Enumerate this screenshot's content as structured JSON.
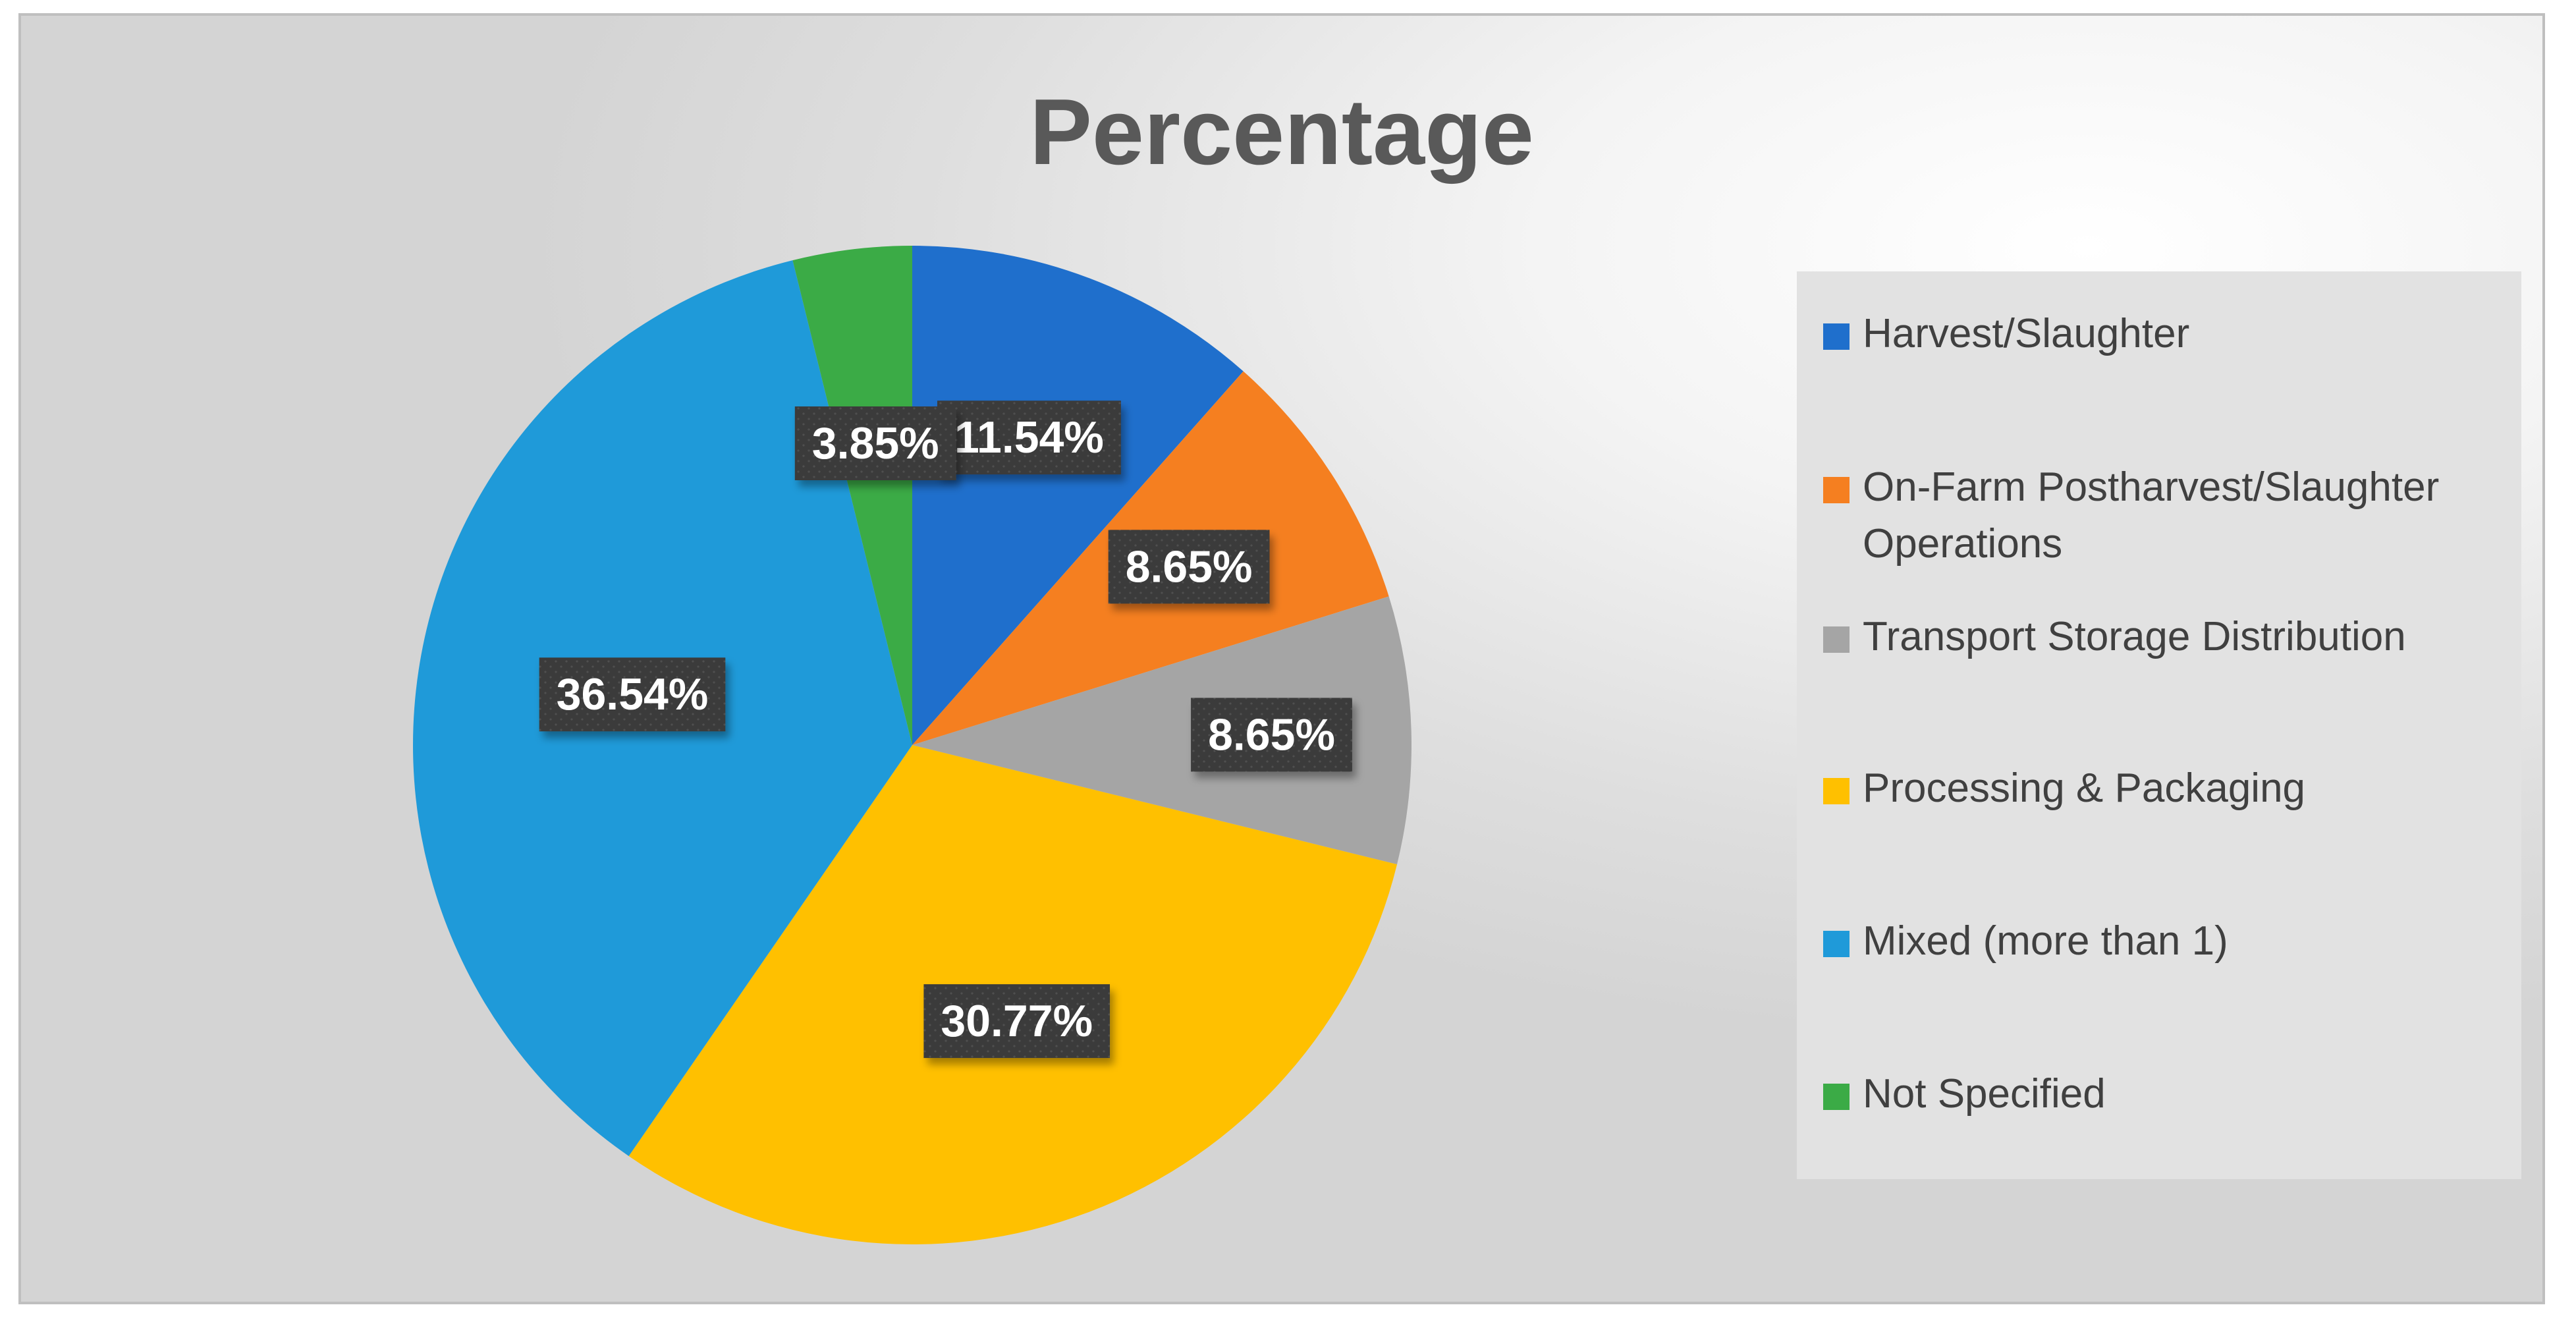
{
  "chart_data": {
    "type": "pie",
    "title": "Percentage",
    "legend_position": "right",
    "start_angle_deg": 0,
    "direction": "clockwise",
    "slices": [
      {
        "label": "Harvest/Slaughter",
        "value": 11.54,
        "display": "11.54%",
        "color": "#1f6fcc"
      },
      {
        "label": "On-Farm Postharvest/Slaughter Operations",
        "value": 8.65,
        "display": "8.65%",
        "color": "#f57f20"
      },
      {
        "label": "Transport Storage Distribution",
        "value": 8.65,
        "display": "8.65%",
        "color": "#a5a5a5"
      },
      {
        "label": "Processing & Packaging",
        "value": 30.77,
        "display": "30.77%",
        "color": "#ffc000"
      },
      {
        "label": "Mixed (more than 1)",
        "value": 36.54,
        "display": "36.54%",
        "color": "#1f9ad9"
      },
      {
        "label": "Not Specified",
        "value": 3.85,
        "display": "3.85%",
        "color": "#3bab46"
      }
    ]
  }
}
